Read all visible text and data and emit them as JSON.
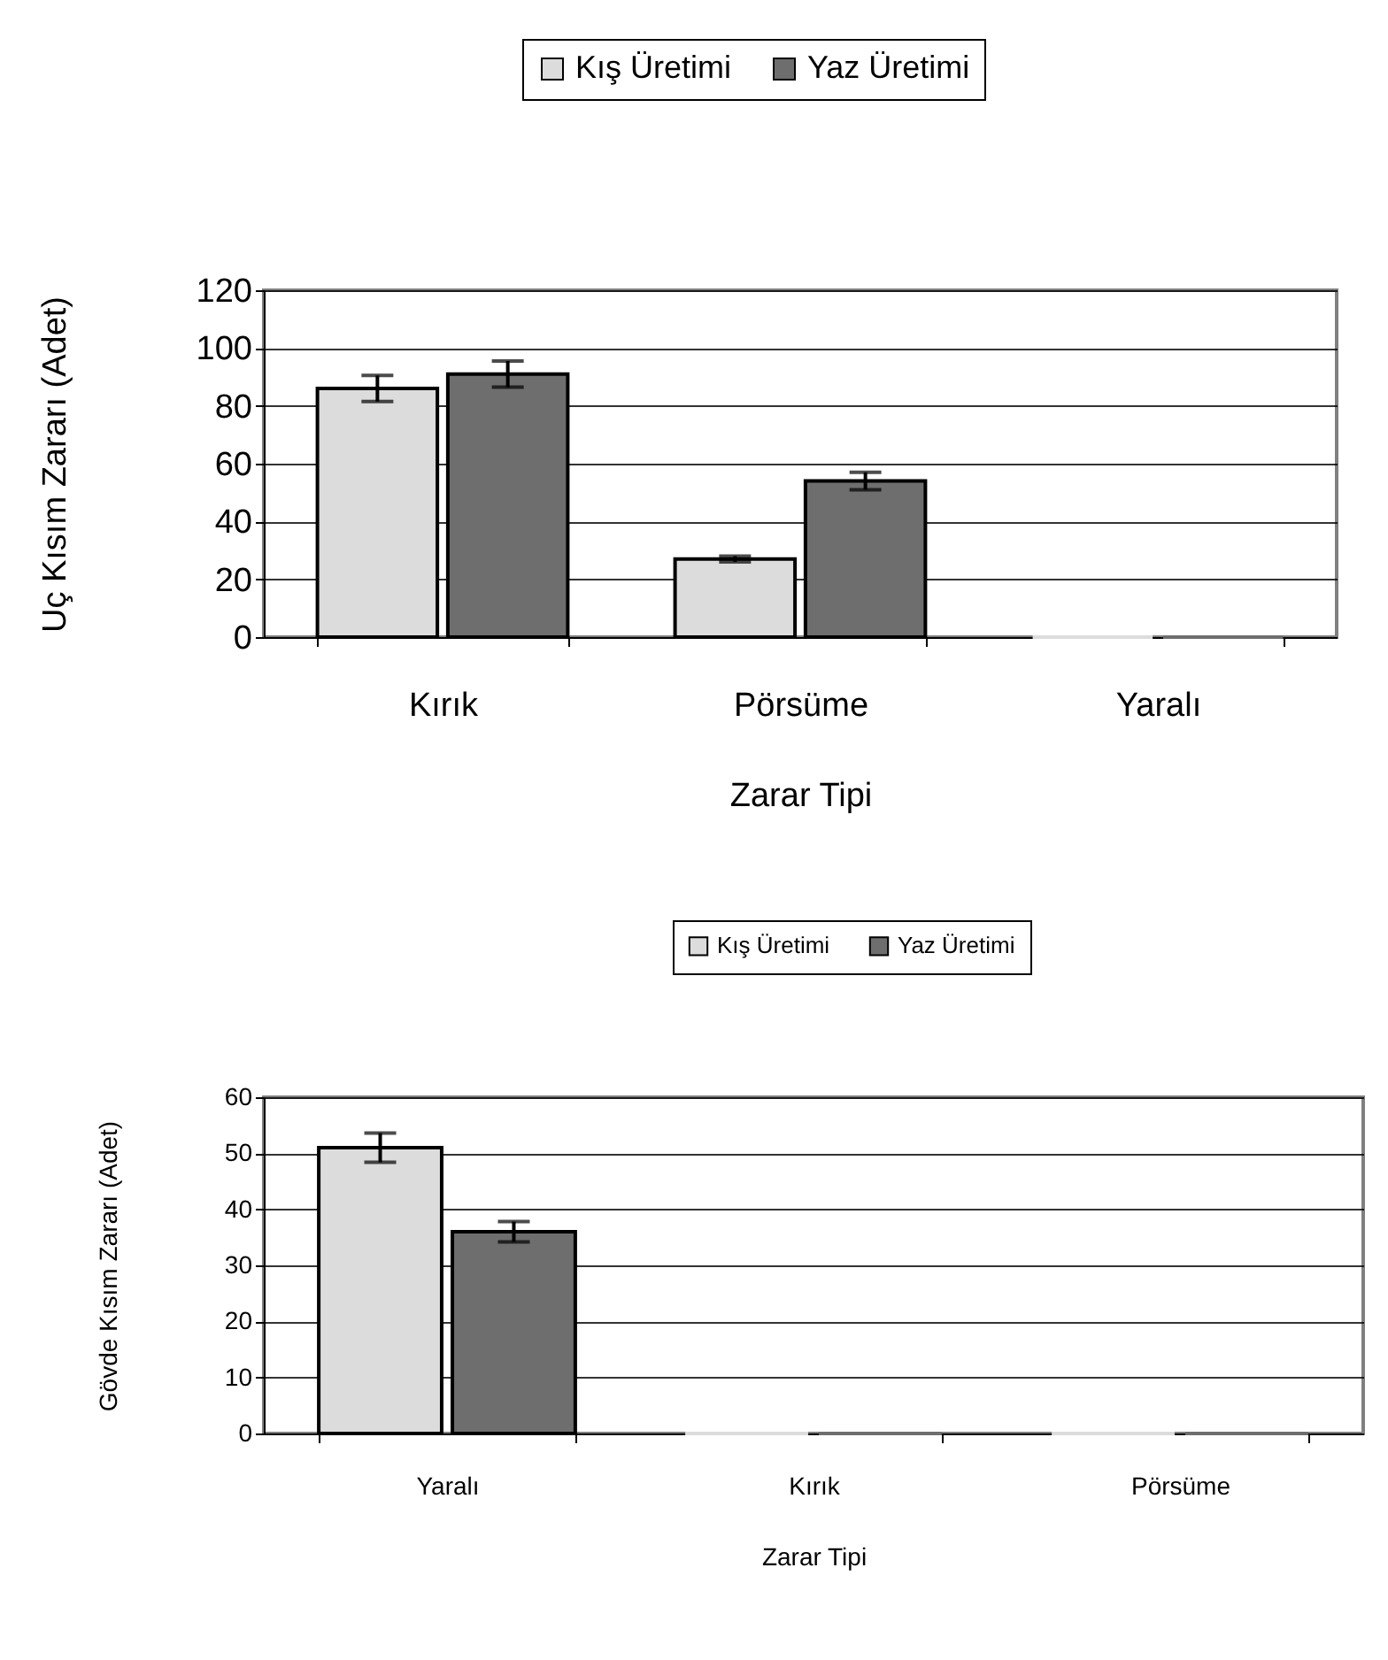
{
  "chart_data": [
    {
      "type": "bar",
      "xlabel": "Zarar Tipi",
      "ylabel": "Uç Kısım Zararı (Adet)",
      "categories": [
        "Kırık",
        "Pörsüme",
        "Yaralı"
      ],
      "ylim": [
        0,
        120
      ],
      "yticks": [
        0,
        20,
        40,
        60,
        80,
        100,
        120
      ],
      "grid": "y",
      "legend": "top",
      "series": [
        {
          "name": "Kış Üretimi",
          "color": "#dcdcdc",
          "values": [
            86,
            27,
            0
          ],
          "errors": [
            4.5,
            1,
            null
          ]
        },
        {
          "name": "Yaz Üretimi",
          "color": "#6e6e6e",
          "values": [
            91,
            54,
            0
          ],
          "errors": [
            4.5,
            3,
            null
          ]
        }
      ]
    },
    {
      "type": "bar",
      "xlabel": "Zarar Tipi",
      "ylabel": "Gövde Kısım Zararı (Adet)",
      "categories": [
        "Yaralı",
        "Kırık",
        "Pörsüme"
      ],
      "ylim": [
        0,
        60
      ],
      "yticks": [
        0,
        10,
        20,
        30,
        40,
        50,
        60
      ],
      "grid": "y",
      "legend": "top",
      "series": [
        {
          "name": "Kış Üretimi",
          "color": "#dcdcdc",
          "values": [
            51,
            0,
            0
          ],
          "errors": [
            2.6,
            null,
            null
          ]
        },
        {
          "name": "Yaz Üretimi",
          "color": "#6e6e6e",
          "values": [
            36,
            0,
            0
          ],
          "errors": [
            1.8,
            null,
            null
          ]
        }
      ]
    }
  ]
}
